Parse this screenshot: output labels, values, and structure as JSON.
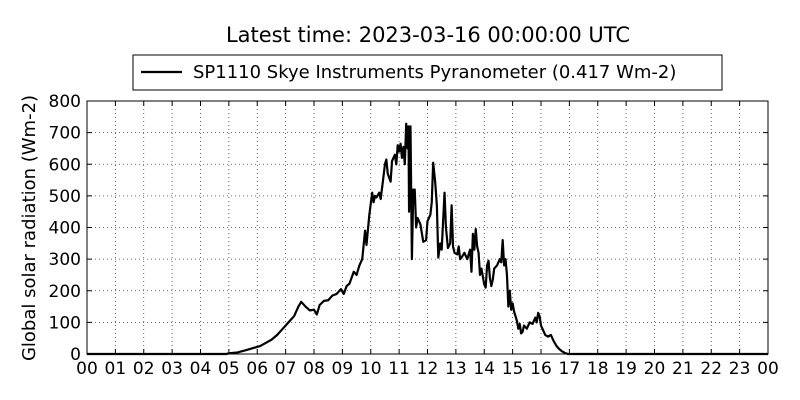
{
  "chart_data": {
    "type": "line",
    "title": "Latest time: 2023-03-16 00:00:00 UTC",
    "xlabel": "",
    "ylabel": "Global solar radiation (Wm-2)",
    "xlim": [
      0,
      24
    ],
    "ylim": [
      0,
      800
    ],
    "grid": true,
    "legend_position": "top-center",
    "x_tick_labels": [
      "00",
      "01",
      "02",
      "03",
      "04",
      "05",
      "06",
      "07",
      "08",
      "09",
      "10",
      "11",
      "12",
      "13",
      "14",
      "15",
      "16",
      "17",
      "18",
      "19",
      "20",
      "21",
      "22",
      "23",
      "00"
    ],
    "y_ticks": [
      0,
      100,
      200,
      300,
      400,
      500,
      600,
      700,
      800
    ],
    "series": [
      {
        "name": "SP1110 Skye Instruments Pyranometer (0.417 Wm-2)",
        "color": "#000000",
        "points": [
          [
            0,
            0
          ],
          [
            1,
            0
          ],
          [
            2,
            0
          ],
          [
            3,
            0
          ],
          [
            4,
            0
          ],
          [
            4.9,
            0
          ],
          [
            5.0,
            2
          ],
          [
            5.3,
            5
          ],
          [
            5.6,
            12
          ],
          [
            5.9,
            20
          ],
          [
            6.1,
            25
          ],
          [
            6.3,
            35
          ],
          [
            6.5,
            45
          ],
          [
            6.7,
            60
          ],
          [
            6.9,
            80
          ],
          [
            7.1,
            100
          ],
          [
            7.3,
            120
          ],
          [
            7.45,
            150
          ],
          [
            7.55,
            165
          ],
          [
            7.7,
            150
          ],
          [
            7.85,
            138
          ],
          [
            8.0,
            140
          ],
          [
            8.1,
            125
          ],
          [
            8.2,
            155
          ],
          [
            8.35,
            168
          ],
          [
            8.5,
            170
          ],
          [
            8.65,
            185
          ],
          [
            8.8,
            190
          ],
          [
            8.95,
            205
          ],
          [
            9.05,
            190
          ],
          [
            9.15,
            215
          ],
          [
            9.25,
            222
          ],
          [
            9.4,
            260
          ],
          [
            9.5,
            250
          ],
          [
            9.6,
            280
          ],
          [
            9.7,
            300
          ],
          [
            9.8,
            390
          ],
          [
            9.85,
            345
          ],
          [
            9.95,
            440
          ],
          [
            10.05,
            510
          ],
          [
            10.1,
            480
          ],
          [
            10.15,
            500
          ],
          [
            10.2,
            495
          ],
          [
            10.3,
            510
          ],
          [
            10.35,
            490
          ],
          [
            10.42,
            540
          ],
          [
            10.5,
            600
          ],
          [
            10.55,
            615
          ],
          [
            10.6,
            570
          ],
          [
            10.7,
            545
          ],
          [
            10.75,
            610
          ],
          [
            10.85,
            630
          ],
          [
            10.9,
            600
          ],
          [
            10.95,
            660
          ],
          [
            11.0,
            640
          ],
          [
            11.05,
            665
          ],
          [
            11.1,
            620
          ],
          [
            11.15,
            655
          ],
          [
            11.2,
            600
          ],
          [
            11.25,
            728
          ],
          [
            11.3,
            650
          ],
          [
            11.33,
            720
          ],
          [
            11.35,
            450
          ],
          [
            11.4,
            720
          ],
          [
            11.45,
            300
          ],
          [
            11.5,
            520
          ],
          [
            11.55,
            520
          ],
          [
            11.6,
            400
          ],
          [
            11.65,
            430
          ],
          [
            11.7,
            420
          ],
          [
            11.75,
            410
          ],
          [
            11.85,
            355
          ],
          [
            11.95,
            360
          ],
          [
            12.0,
            420
          ],
          [
            12.05,
            430
          ],
          [
            12.1,
            440
          ],
          [
            12.15,
            480
          ],
          [
            12.2,
            605
          ],
          [
            12.27,
            545
          ],
          [
            12.33,
            470
          ],
          [
            12.38,
            305
          ],
          [
            12.45,
            350
          ],
          [
            12.5,
            330
          ],
          [
            12.55,
            420
          ],
          [
            12.6,
            510
          ],
          [
            12.65,
            400
          ],
          [
            12.72,
            335
          ],
          [
            12.8,
            350
          ],
          [
            12.85,
            470
          ],
          [
            12.9,
            340
          ],
          [
            12.95,
            320
          ],
          [
            13.05,
            315
          ],
          [
            13.1,
            340
          ],
          [
            13.15,
            300
          ],
          [
            13.2,
            305
          ],
          [
            13.3,
            320
          ],
          [
            13.4,
            300
          ],
          [
            13.5,
            330
          ],
          [
            13.55,
            260
          ],
          [
            13.6,
            380
          ],
          [
            13.65,
            330
          ],
          [
            13.7,
            395
          ],
          [
            13.75,
            340
          ],
          [
            13.8,
            320
          ],
          [
            13.85,
            250
          ],
          [
            13.9,
            270
          ],
          [
            14.0,
            220
          ],
          [
            14.05,
            210
          ],
          [
            14.1,
            280
          ],
          [
            14.15,
            295
          ],
          [
            14.2,
            240
          ],
          [
            14.25,
            215
          ],
          [
            14.3,
            235
          ],
          [
            14.35,
            270
          ],
          [
            14.45,
            280
          ],
          [
            14.55,
            300
          ],
          [
            14.6,
            290
          ],
          [
            14.65,
            360
          ],
          [
            14.7,
            280
          ],
          [
            14.75,
            300
          ],
          [
            14.8,
            250
          ],
          [
            14.85,
            150
          ],
          [
            14.9,
            200
          ],
          [
            14.95,
            140
          ],
          [
            15.0,
            160
          ],
          [
            15.05,
            135
          ],
          [
            15.1,
            120
          ],
          [
            15.15,
            105
          ],
          [
            15.2,
            80
          ],
          [
            15.25,
            95
          ],
          [
            15.3,
            65
          ],
          [
            15.35,
            70
          ],
          [
            15.4,
            90
          ],
          [
            15.5,
            80
          ],
          [
            15.6,
            100
          ],
          [
            15.7,
            95
          ],
          [
            15.8,
            115
          ],
          [
            15.85,
            100
          ],
          [
            15.9,
            130
          ],
          [
            15.95,
            120
          ],
          [
            16.0,
            90
          ],
          [
            16.05,
            80
          ],
          [
            16.15,
            60
          ],
          [
            16.25,
            55
          ],
          [
            16.35,
            60
          ],
          [
            16.45,
            40
          ],
          [
            16.55,
            25
          ],
          [
            16.65,
            15
          ],
          [
            16.75,
            8
          ],
          [
            16.85,
            3
          ],
          [
            16.95,
            0
          ],
          [
            17.2,
            0
          ],
          [
            18,
            0
          ],
          [
            20,
            0
          ],
          [
            22,
            0
          ],
          [
            24,
            0
          ]
        ]
      }
    ]
  }
}
